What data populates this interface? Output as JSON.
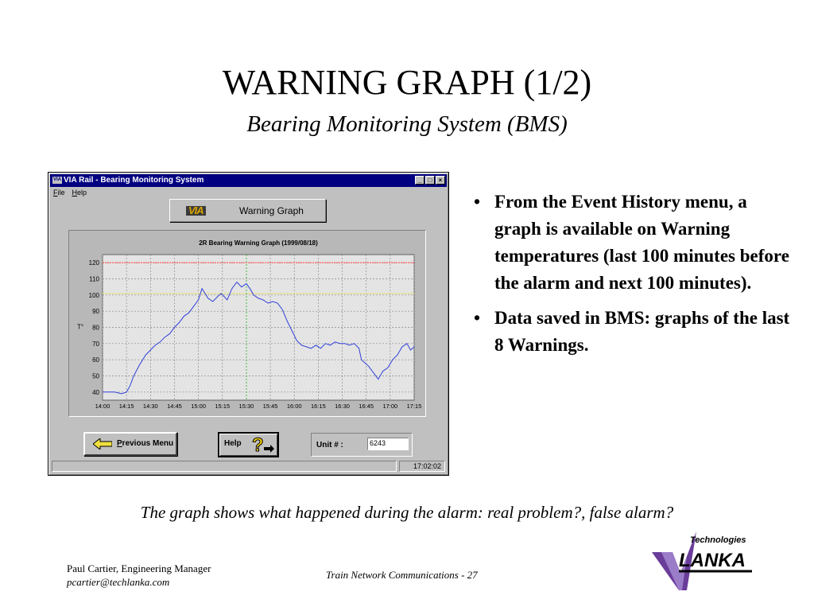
{
  "slide": {
    "title": "WARNING GRAPH (1/2)",
    "subtitle": "Bearing Monitoring System (BMS)",
    "caption": "The graph shows what happened during the alarm: real problem?, false alarm?"
  },
  "window": {
    "app_icon_text": "VIA",
    "title": "VIA Rail - Bearing Monitoring System",
    "menu": [
      "File",
      "Help"
    ],
    "header_logo": "VIA",
    "header_title": "Warning Graph",
    "prev_button": "Previous Menu",
    "help_button": "Help",
    "unit_label": "Unit # :",
    "unit_value": "6243",
    "status_time": "17:02:02"
  },
  "bullets": [
    "From the Event History menu, a graph is available on Warning temperatures (last 100 minutes before the alarm and next 100 minutes).",
    "Data saved in BMS:  graphs of the last 8 Warnings."
  ],
  "footer": {
    "author": "Paul Cartier, Engineering Manager",
    "email": "pcartier@techlanka.com",
    "center": "Train Network Communications - 27",
    "logo_top": "Technologies",
    "logo_main": "LANKA"
  },
  "chart_data": {
    "type": "line",
    "title": "2R Bearing Warning Graph (1999/08/18)",
    "ylabel": "T°",
    "xlabel": "",
    "ylim": [
      35,
      125
    ],
    "yticks": [
      40,
      50,
      60,
      70,
      80,
      90,
      100,
      110,
      120
    ],
    "xticks": [
      "14:00",
      "14:15",
      "14:30",
      "14:45",
      "15:00",
      "15:15",
      "15:30",
      "15:45",
      "16:00",
      "16:15",
      "16:30",
      "16:45",
      "17:00",
      "17:15"
    ],
    "thresholds": [
      {
        "value": 120,
        "color": "#ff5050"
      },
      {
        "value": 101,
        "color": "#e8e060"
      }
    ],
    "alarm_marker_index": 6,
    "grid": true,
    "series": [
      {
        "color": "#3040d8",
        "x": [
          0,
          0.5,
          0.8,
          1.0,
          1.15,
          1.3,
          1.55,
          1.8,
          2.0,
          2.2,
          2.4,
          2.6,
          2.8,
          3.0,
          3.2,
          3.4,
          3.6,
          3.8,
          4.0,
          4.15,
          4.4,
          4.6,
          4.8,
          4.95,
          5.2,
          5.4,
          5.6,
          5.8,
          6.0,
          6.15,
          6.3,
          6.5,
          6.7,
          6.9,
          7.1,
          7.3,
          7.5,
          7.7,
          7.9,
          8.1,
          8.3,
          8.5,
          8.7,
          8.9,
          9.1,
          9.3,
          9.5,
          9.7,
          9.9,
          10.1,
          10.3,
          10.5,
          10.7,
          10.8,
          10.95,
          11.1,
          11.3,
          11.5,
          11.7,
          11.9,
          12.1,
          12.3,
          12.5,
          12.7,
          12.85,
          13.0
        ],
        "y": [
          40,
          40,
          39,
          40,
          44,
          50,
          57,
          63,
          66,
          69,
          71,
          74,
          76,
          80,
          83,
          87,
          89,
          93,
          97,
          104,
          98,
          96,
          99,
          101,
          97,
          104,
          108,
          105,
          107,
          104,
          100,
          98,
          97,
          95,
          96,
          95,
          91,
          84,
          78,
          72,
          69,
          68,
          67,
          69,
          67,
          70,
          69,
          71,
          70,
          70,
          69,
          70,
          67,
          60,
          58,
          56,
          52,
          48,
          53,
          55,
          60,
          63,
          68,
          70,
          66,
          68
        ]
      }
    ]
  }
}
